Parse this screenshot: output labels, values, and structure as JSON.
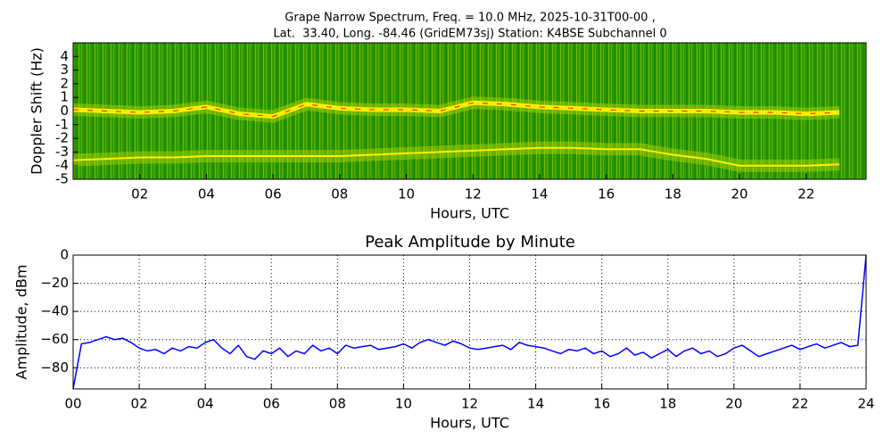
{
  "chart_data": [
    {
      "type": "spectrogram",
      "title": [
        "Grape Narrow Spectrum, Freq. = 10.0 MHz, 2025-10-31T00-00 ,",
        "Lat.  33.40, Long. -84.46 (GridEM73sj) Station: K4BSE Subchannel 0"
      ],
      "x_label": "Hours, UTC",
      "y_label": "Doppler Shift (Hz)",
      "xlim": [
        0,
        23.8
      ],
      "ylim": [
        -5,
        5
      ],
      "xticks": [
        {
          "value": 2,
          "label": "02"
        },
        {
          "value": 4,
          "label": "04"
        },
        {
          "value": 6,
          "label": "06"
        },
        {
          "value": 8,
          "label": "08"
        },
        10,
        12,
        14,
        16,
        18,
        20,
        22
      ],
      "yticks": [
        -5,
        -4,
        -3,
        -2,
        -1,
        0,
        1,
        2,
        3,
        4
      ],
      "x": [
        0,
        1,
        2,
        3,
        4,
        5,
        6,
        7,
        8,
        9,
        10,
        11,
        12,
        13,
        14,
        15,
        16,
        17,
        18,
        19,
        20,
        21,
        22,
        23
      ],
      "series": [
        {
          "color": "#ffee00",
          "values": [
            0.1,
            0,
            -0.1,
            0,
            0.3,
            -0.2,
            -0.4,
            0.5,
            0.2,
            0.1,
            0.1,
            0,
            0.6,
            0.5,
            0.3,
            0.2,
            0.1,
            0,
            0,
            0,
            -0.1,
            -0.1,
            -0.2,
            -0.1
          ]
        },
        {
          "color": "#ffee00",
          "values": [
            -3.6,
            -3.5,
            -3.4,
            -3.4,
            -3.3,
            -3.3,
            -3.3,
            -3.3,
            -3.3,
            -3.2,
            -3.1,
            -3.0,
            -2.9,
            -2.8,
            -2.7,
            -2.7,
            -2.8,
            -2.8,
            -3.2,
            -3.5,
            -4.0,
            -4.0,
            -4.0,
            -3.9
          ]
        }
      ]
    },
    {
      "type": "line",
      "title": "Peak Amplitude by Minute",
      "x_label": "Hours, UTC",
      "y_label": "Amplitude, dBm",
      "xlim": [
        0,
        24
      ],
      "ylim": [
        -95,
        0
      ],
      "grid": true,
      "xticks": [
        {
          "value": 0,
          "label": "00"
        },
        {
          "value": 2,
          "label": "02"
        },
        {
          "value": 4,
          "label": "04"
        },
        {
          "value": 6,
          "label": "06"
        },
        {
          "value": 8,
          "label": "08"
        },
        10,
        12,
        14,
        16,
        18,
        20,
        22,
        24
      ],
      "yticks": [
        0,
        {
          "value": -20,
          "label": "−20"
        },
        {
          "value": -40,
          "label": "−40"
        },
        {
          "value": -60,
          "label": "−60"
        },
        {
          "value": -80,
          "label": "−80"
        }
      ],
      "x": [
        0,
        0.25,
        0.5,
        0.75,
        1,
        1.25,
        1.5,
        1.75,
        2,
        2.25,
        2.5,
        2.75,
        3,
        3.25,
        3.5,
        3.75,
        4,
        4.25,
        4.5,
        4.75,
        5,
        5.25,
        5.5,
        5.75,
        6,
        6.25,
        6.5,
        6.75,
        7,
        7.25,
        7.5,
        7.75,
        8,
        8.25,
        8.5,
        8.75,
        9,
        9.25,
        9.5,
        9.75,
        10,
        10.25,
        10.5,
        10.75,
        11,
        11.25,
        11.5,
        11.75,
        12,
        12.25,
        12.5,
        12.75,
        13,
        13.25,
        13.5,
        13.75,
        14,
        14.25,
        14.5,
        14.75,
        15,
        15.25,
        15.5,
        15.75,
        16,
        16.25,
        16.5,
        16.75,
        17,
        17.25,
        17.5,
        17.75,
        18,
        18.25,
        18.5,
        18.75,
        19,
        19.25,
        19.5,
        19.75,
        20,
        20.25,
        20.5,
        20.75,
        21,
        21.25,
        21.5,
        21.75,
        22,
        22.25,
        22.5,
        22.75,
        23,
        23.25,
        23.5,
        23.75,
        24
      ],
      "series": [
        {
          "color": "#0000ff",
          "values": [
            -95,
            -63,
            -62,
            -60,
            -58,
            -60,
            -59,
            -62,
            -66,
            -68,
            -67,
            -70,
            -66,
            -68,
            -65,
            -66,
            -62,
            -60,
            -66,
            -70,
            -64,
            -72,
            -74,
            -68,
            -70,
            -66,
            -72,
            -68,
            -70,
            -64,
            -68,
            -66,
            -70,
            -64,
            -66,
            -65,
            -64,
            -67,
            -66,
            -65,
            -63,
            -66,
            -62,
            -60,
            -62,
            -64,
            -61,
            -63,
            -66,
            -67,
            -66,
            -65,
            -64,
            -67,
            -62,
            -64,
            -65,
            -66,
            -68,
            -70,
            -67,
            -68,
            -66,
            -70,
            -68,
            -72,
            -70,
            -66,
            -71,
            -69,
            -73,
            -70,
            -67,
            -72,
            -68,
            -66,
            -70,
            -68,
            -72,
            -70,
            -66,
            -64,
            -68,
            -72,
            -70,
            -68,
            -66,
            -64,
            -67,
            -65,
            -63,
            -66,
            -64,
            -62,
            -65,
            -64,
            0
          ]
        }
      ]
    }
  ]
}
